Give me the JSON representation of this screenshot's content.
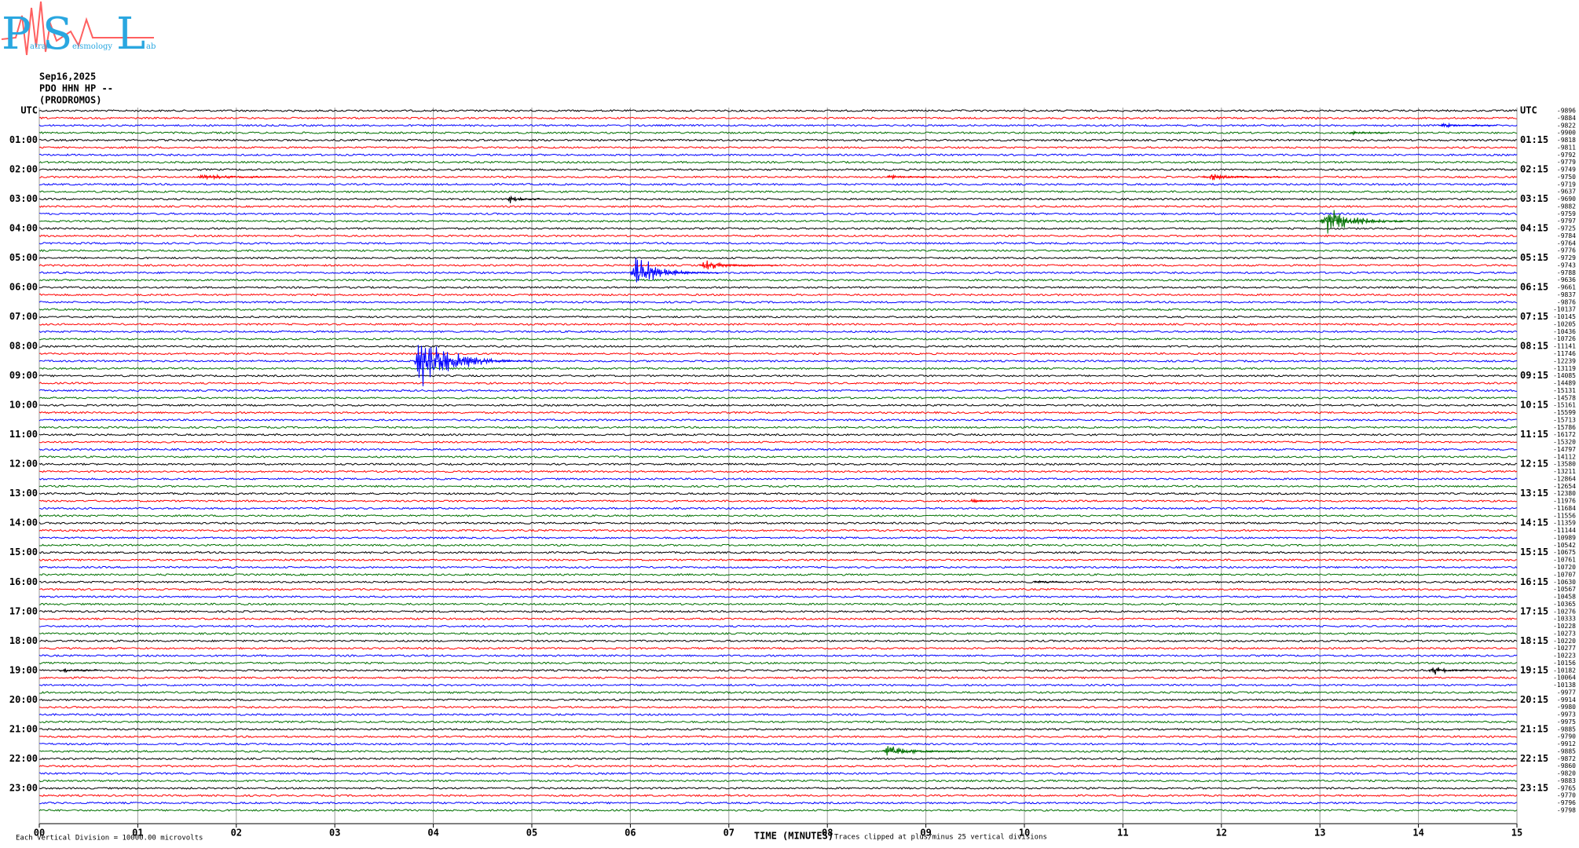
{
  "logo": {
    "letters": [
      "P",
      "S",
      "L"
    ],
    "words": [
      "atras",
      "eismology",
      "ab"
    ]
  },
  "header": {
    "date": "Sep16,2025",
    "station": "PDO HHN HP --",
    "site": "(PRODROMOS)"
  },
  "chart_data": {
    "type": "helicorder",
    "left_labels": [
      "UTC",
      "01:00",
      "02:00",
      "03:00",
      "04:00",
      "05:00",
      "06:00",
      "07:00",
      "08:00",
      "09:00",
      "10:00",
      "11:00",
      "12:00",
      "13:00",
      "14:00",
      "15:00",
      "16:00",
      "17:00",
      "18:00",
      "19:00",
      "20:00",
      "21:00",
      "22:00",
      "23:00"
    ],
    "right_labels": [
      "UTC",
      "01:15",
      "02:15",
      "03:15",
      "04:15",
      "05:15",
      "06:15",
      "07:15",
      "08:15",
      "09:15",
      "10:15",
      "11:15",
      "12:15",
      "13:15",
      "14:15",
      "15:15",
      "16:15",
      "17:15",
      "18:15",
      "19:15",
      "20:15",
      "21:15",
      "22:15",
      "23:15"
    ],
    "offsets": [
      -9896,
      -9884,
      -9822,
      -9900,
      -9818,
      -9811,
      -9792,
      -9779,
      -9749,
      -9750,
      -9719,
      -9637,
      -9690,
      -9882,
      -9759,
      -9797,
      -9725,
      -9784,
      -9764,
      -9776,
      -9729,
      -9743,
      -9788,
      -9636,
      -9661,
      -9837,
      -9876,
      -10137,
      -10145,
      -10205,
      -10436,
      -10726,
      -11141,
      -11746,
      -12239,
      -13119,
      -14085,
      -14489,
      -15131,
      -14578,
      -15161,
      -15599,
      -15713,
      -15786,
      -16172,
      -15320,
      -14797,
      -14112,
      -13580,
      -13211,
      -12864,
      -12654,
      -12380,
      -11976,
      -11684,
      -11556,
      -11359,
      -11144,
      -10989,
      -10542,
      -10675,
      -10761,
      -10720,
      -10707,
      -10630,
      -10567,
      -10458,
      -10365,
      -10276,
      -10333,
      -10228,
      -10273,
      -10220,
      -10277,
      -10223,
      -10156,
      -10182,
      -10064,
      -10138,
      -9977,
      -9914,
      -9980,
      -9973,
      -9975,
      -9885,
      -9790,
      -9912,
      -9885,
      -9872,
      -9860,
      -9820,
      -9883,
      -9765,
      -9770,
      -9796,
      -9798
    ],
    "colors": [
      "#000000",
      "#ff0000",
      "#0000ff",
      "#007000"
    ],
    "xlim": [
      0,
      15
    ],
    "xticks": [
      {
        "value": 0,
        "label": "00"
      },
      {
        "value": 1,
        "label": "01"
      },
      {
        "value": 2,
        "label": "02"
      },
      {
        "value": 3,
        "label": "03"
      },
      {
        "value": 4,
        "label": "04"
      },
      {
        "value": 5,
        "label": "05"
      },
      {
        "value": 6,
        "label": "06"
      },
      {
        "value": 7,
        "label": "07"
      },
      {
        "value": 8,
        "label": "08"
      },
      {
        "value": 9,
        "label": "09"
      },
      {
        "value": 10,
        "label": "10"
      },
      {
        "value": 11,
        "label": "11"
      },
      {
        "value": 12,
        "label": "12"
      },
      {
        "value": 13,
        "label": "13"
      },
      {
        "value": 14,
        "label": "14"
      },
      {
        "value": 15,
        "label": "15"
      }
    ],
    "xlabel": "TIME (MINUTES)",
    "events": [
      {
        "row": 2,
        "minute": 14.2,
        "amplitude": 3,
        "duration": 0.6
      },
      {
        "row": 3,
        "minute": 13.3,
        "amplitude": 2,
        "duration": 0.4
      },
      {
        "row": 9,
        "minute": 1.6,
        "amplitude": 5,
        "duration": 0.9
      },
      {
        "row": 9,
        "minute": 8.6,
        "amplitude": 3,
        "duration": 0.5
      },
      {
        "row": 9,
        "minute": 11.8,
        "amplitude": 5,
        "duration": 0.8
      },
      {
        "row": 12,
        "minute": 4.75,
        "amplitude": 5,
        "duration": 0.4
      },
      {
        "row": 15,
        "minute": 13.0,
        "amplitude": 16,
        "duration": 1.1
      },
      {
        "row": 21,
        "minute": 6.7,
        "amplitude": 6,
        "duration": 0.8
      },
      {
        "row": 22,
        "minute": 6.0,
        "amplitude": 22,
        "duration": 0.9
      },
      {
        "row": 34,
        "minute": 3.8,
        "amplitude": 38,
        "duration": 1.2
      },
      {
        "row": 53,
        "minute": 9.45,
        "amplitude": 5,
        "duration": 0.3
      },
      {
        "row": 61,
        "minute": 7.1,
        "amplitude": 3,
        "duration": 0.3
      },
      {
        "row": 64,
        "minute": 10.1,
        "amplitude": 3,
        "duration": 0.3
      },
      {
        "row": 76,
        "minute": 0.2,
        "amplitude": 4,
        "duration": 0.4
      },
      {
        "row": 76,
        "minute": 14.1,
        "amplitude": 6,
        "duration": 0.6
      },
      {
        "row": 87,
        "minute": 8.55,
        "amplitude": 8,
        "duration": 0.9
      }
    ]
  },
  "footer": {
    "scale_note": "Each Vertical Division = 10000.00 microvolts",
    "clip_note": "Traces clipped at plus/minus 25 vertical divisions"
  }
}
